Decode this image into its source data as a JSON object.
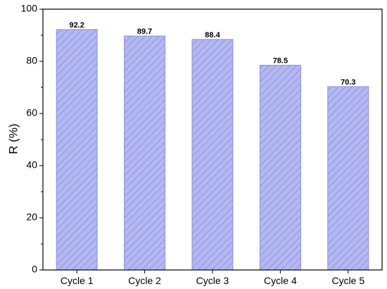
{
  "chart_data": {
    "type": "bar",
    "categories": [
      "Cycle 1",
      "Cycle 2",
      "Cycle 3",
      "Cycle 4",
      "Cycle 5"
    ],
    "values": [
      92.2,
      89.7,
      88.4,
      78.5,
      70.3
    ],
    "data_labels": [
      "92.2",
      "89.7",
      "88.4",
      "78.5",
      "70.3"
    ],
    "title": "",
    "xlabel": "",
    "ylabel": "R (%)",
    "ylim": [
      0,
      100
    ],
    "yticks": [
      0,
      20,
      40,
      60,
      80,
      100
    ],
    "ytick_labels": [
      "0",
      "20",
      "40",
      "60",
      "80",
      "100"
    ],
    "grid": false,
    "bar_fill": "#b3b8f5",
    "bar_hatch": "#6f73b3",
    "bar_edge": "#8d91d8"
  }
}
